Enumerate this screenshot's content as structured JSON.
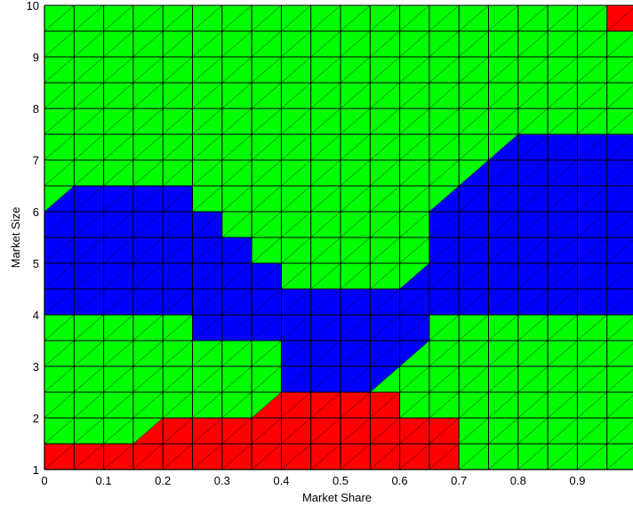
{
  "chart_data": {
    "type": "heatmap",
    "xlabel": "Market Share",
    "ylabel": "Market Size",
    "xlim": [
      0,
      1
    ],
    "ylim": [
      1,
      10
    ],
    "x_ticks": [
      0,
      0.1,
      0.2,
      0.3,
      0.4,
      0.5,
      0.6,
      0.7,
      0.8,
      0.9,
      1
    ],
    "x_tick_labels": [
      "0",
      "0.1",
      "0.2",
      "0.3",
      "0.4",
      "0.5",
      "0.6",
      "0.7",
      "0.8",
      "0.9",
      "1"
    ],
    "y_ticks": [
      1,
      2,
      3,
      4,
      5,
      6,
      7,
      8,
      9,
      10
    ],
    "y_tick_labels": [
      "1",
      "2",
      "3",
      "4",
      "5",
      "6",
      "7",
      "8",
      "9",
      "10"
    ],
    "grid_x": [
      0,
      0.05,
      0.1,
      0.15,
      0.2,
      0.25,
      0.3,
      0.35,
      0.4,
      0.45,
      0.5,
      0.55,
      0.6,
      0.65,
      0.7,
      0.75,
      0.8,
      0.85,
      0.9,
      0.95,
      1
    ],
    "grid_y": [
      1,
      1.5,
      2,
      2.5,
      3,
      3.5,
      4,
      4.5,
      5,
      5.5,
      6,
      6.5,
      7,
      7.5,
      8,
      8.5,
      9,
      9.5,
      10
    ],
    "colors": {
      "green": "#00ff00",
      "blue": "#0000ff",
      "red": "#ff0000",
      "grid": "#000000"
    },
    "regions": [
      {
        "color": "blue",
        "polygon": [
          [
            0,
            4
          ],
          [
            0.25,
            4
          ],
          [
            0.25,
            3.5
          ],
          [
            0.4,
            3.5
          ],
          [
            0.4,
            2.5
          ],
          [
            0.55,
            2.5
          ],
          [
            0.65,
            3.5
          ],
          [
            0.65,
            4
          ],
          [
            1,
            4
          ],
          [
            1,
            7.5
          ],
          [
            0.8,
            7.5
          ],
          [
            0.7,
            6.5
          ],
          [
            0.65,
            6
          ],
          [
            0.65,
            5
          ],
          [
            0.6,
            4.5
          ],
          [
            0.4,
            4.5
          ],
          [
            0.4,
            5
          ],
          [
            0.35,
            5
          ],
          [
            0.35,
            5.5
          ],
          [
            0.3,
            5.5
          ],
          [
            0.3,
            6
          ],
          [
            0.25,
            6
          ],
          [
            0.25,
            6.5
          ],
          [
            0.05,
            6.5
          ],
          [
            0,
            6
          ]
        ]
      },
      {
        "color": "red",
        "polygon": [
          [
            0,
            1
          ],
          [
            0.7,
            1
          ],
          [
            0.7,
            2
          ],
          [
            0.6,
            2
          ],
          [
            0.6,
            2.5
          ],
          [
            0.4,
            2.5
          ],
          [
            0.35,
            2
          ],
          [
            0.2,
            2
          ],
          [
            0.15,
            1.5
          ],
          [
            0,
            1.5
          ]
        ]
      },
      {
        "color": "red",
        "polygon": [
          [
            0.95,
            9.5
          ],
          [
            1,
            9.5
          ],
          [
            1,
            10
          ],
          [
            0.95,
            10
          ]
        ]
      }
    ]
  }
}
